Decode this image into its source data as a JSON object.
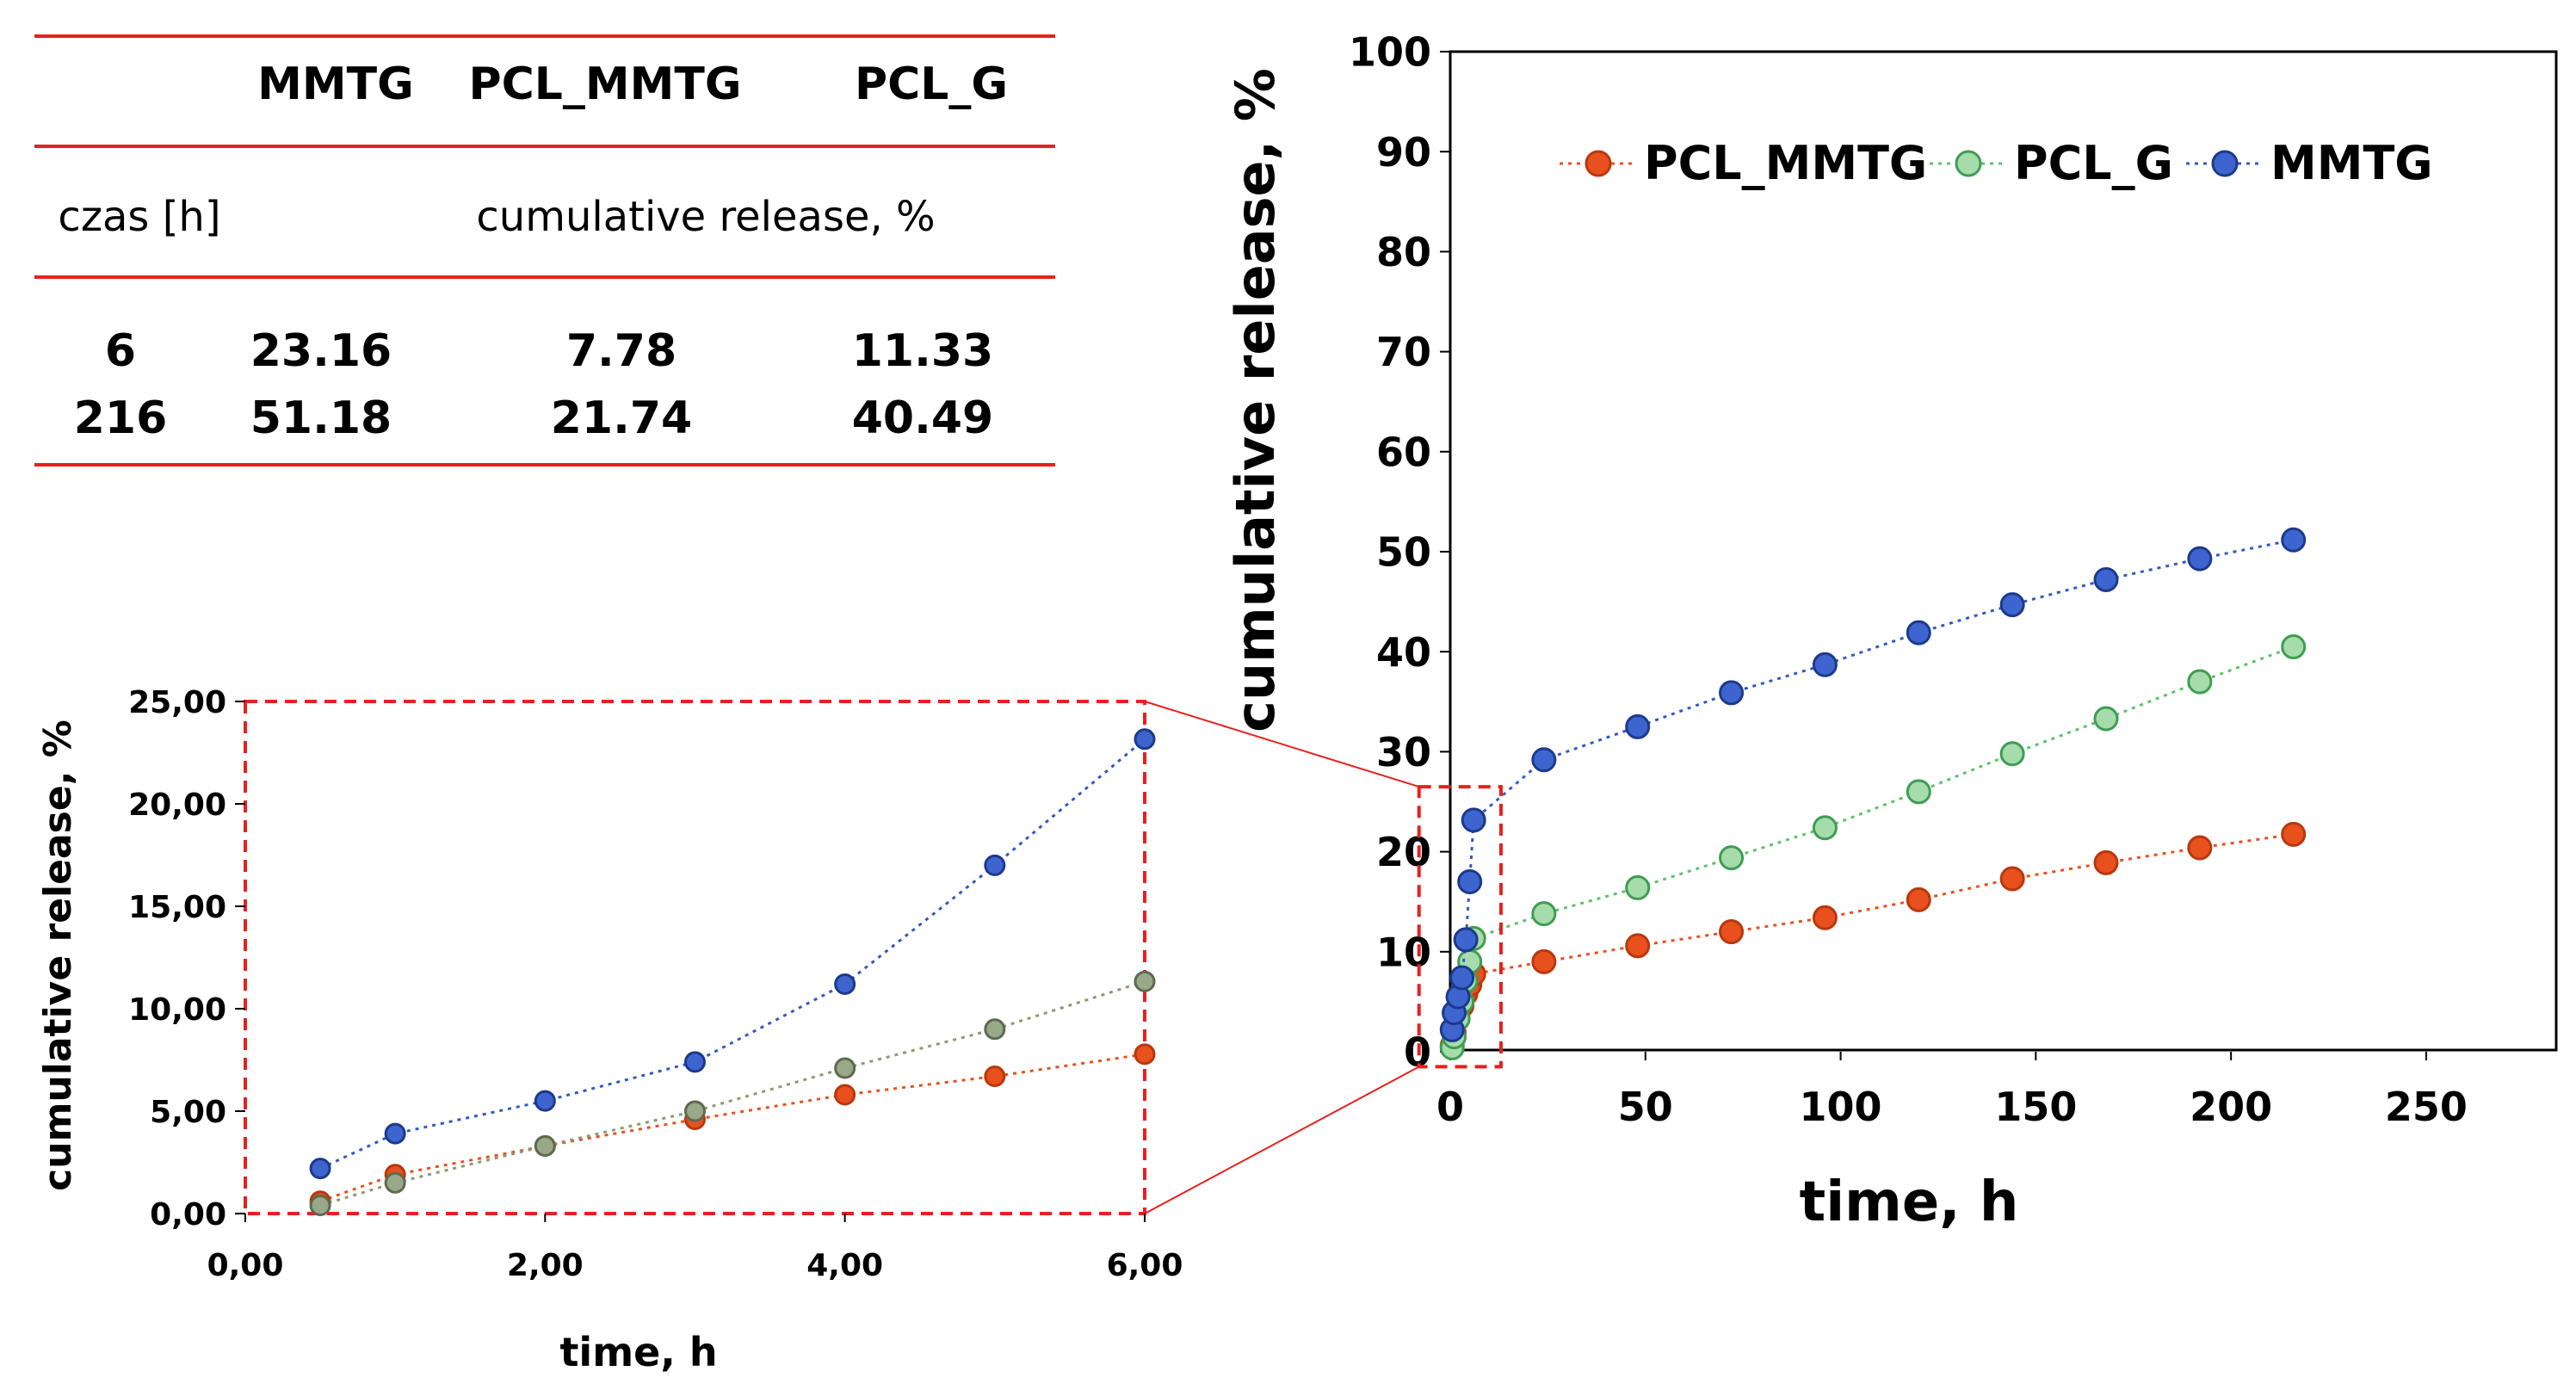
{
  "colors": {
    "pcl_mmtg": "#e8501e",
    "pcl_g": "#5cc26e",
    "mmtg": "#3358c4",
    "inset_pcl_g": "#8a9a72",
    "table_rule": "#e8201e",
    "zoom_box": "#e8201e"
  },
  "table": {
    "headers": [
      "MMTG",
      "PCL_MMTG",
      "PCL_G"
    ],
    "row_label": "czas [h]",
    "subheader": "cumulative release, %",
    "rows": [
      {
        "time": "6",
        "mmtg": "23.16",
        "pcl_mmtg": "7.78",
        "pcl_g": "11.33"
      },
      {
        "time": "216",
        "mmtg": "51.18",
        "pcl_mmtg": "21.74",
        "pcl_g": "40.49"
      }
    ]
  },
  "chart_data": [
    {
      "id": "main",
      "type": "line",
      "title": "",
      "xlabel": "time, h",
      "ylabel": "cumulative release, %",
      "xlim": [
        0,
        280
      ],
      "ylim": [
        0,
        100
      ],
      "xticks": [
        0,
        50,
        100,
        150,
        200,
        250
      ],
      "yticks": [
        0,
        10,
        20,
        30,
        40,
        50,
        60,
        70,
        80,
        90,
        100
      ],
      "xtick_labels": [
        "0",
        "50",
        "100",
        "150",
        "200",
        "250"
      ],
      "ytick_labels": [
        "0",
        "10",
        "20",
        "30",
        "40",
        "50",
        "60",
        "70",
        "80",
        "90",
        "100"
      ],
      "legend": [
        "PCL_MMTG",
        "PCL_G",
        "MMTG"
      ],
      "legend_position": "top",
      "series": [
        {
          "name": "PCL_MMTG",
          "color_key": "pcl_mmtg",
          "x": [
            0.5,
            1,
            2,
            3,
            4,
            5,
            6,
            24,
            48,
            72,
            96,
            120,
            144,
            168,
            192,
            216
          ],
          "y": [
            0.6,
            1.9,
            3.3,
            4.6,
            5.8,
            6.7,
            7.78,
            9.0,
            10.6,
            12.0,
            13.4,
            15.2,
            17.3,
            18.9,
            20.4,
            21.74
          ]
        },
        {
          "name": "PCL_G",
          "color_key": "pcl_g",
          "x": [
            0.5,
            1,
            2,
            3,
            4,
            5,
            6,
            24,
            48,
            72,
            96,
            120,
            144,
            168,
            192,
            216
          ],
          "y": [
            0.4,
            1.5,
            3.3,
            5.0,
            7.1,
            9.0,
            11.33,
            13.8,
            16.4,
            19.4,
            22.4,
            26.0,
            29.8,
            33.3,
            37.0,
            40.49
          ]
        },
        {
          "name": "MMTG",
          "color_key": "mmtg",
          "x": [
            0.5,
            1,
            2,
            3,
            4,
            5,
            6,
            24,
            48,
            72,
            96,
            120,
            144,
            168,
            192,
            216
          ],
          "y": [
            2.2,
            3.9,
            5.5,
            7.4,
            11.2,
            17.0,
            23.16,
            29.2,
            32.5,
            35.9,
            38.7,
            41.9,
            44.7,
            47.2,
            49.3,
            51.18
          ]
        }
      ],
      "zoom_region": {
        "x": [
          -8,
          13
        ],
        "y": [
          -1.5,
          26.5
        ]
      }
    },
    {
      "id": "inset",
      "type": "line",
      "title": "",
      "xlabel": "time, h",
      "ylabel": "cumulative release, %",
      "xlim": [
        0,
        6
      ],
      "ylim": [
        0,
        25
      ],
      "xticks": [
        0,
        2,
        4,
        6
      ],
      "yticks": [
        0,
        5,
        10,
        15,
        20,
        25
      ],
      "xtick_labels": [
        "0,00",
        "2,00",
        "4,00",
        "6,00"
      ],
      "ytick_labels": [
        "0,00",
        "5,00",
        "10,00",
        "15,00",
        "20,00",
        "25,00"
      ],
      "series": [
        {
          "name": "PCL_MMTG",
          "color_key": "pcl_mmtg",
          "x": [
            0.5,
            1,
            2,
            3,
            4,
            5,
            6
          ],
          "y": [
            0.6,
            1.9,
            3.3,
            4.6,
            5.8,
            6.7,
            7.78
          ]
        },
        {
          "name": "PCL_G",
          "color_key": "inset_pcl_g",
          "x": [
            0.5,
            1,
            2,
            3,
            4,
            5,
            6
          ],
          "y": [
            0.4,
            1.5,
            3.3,
            5.0,
            7.1,
            9.0,
            11.33
          ]
        },
        {
          "name": "MMTG",
          "color_key": "mmtg",
          "x": [
            0.5,
            1,
            2,
            3,
            4,
            5,
            6
          ],
          "y": [
            2.2,
            3.9,
            5.5,
            7.4,
            11.2,
            17.0,
            23.16
          ]
        }
      ]
    }
  ]
}
